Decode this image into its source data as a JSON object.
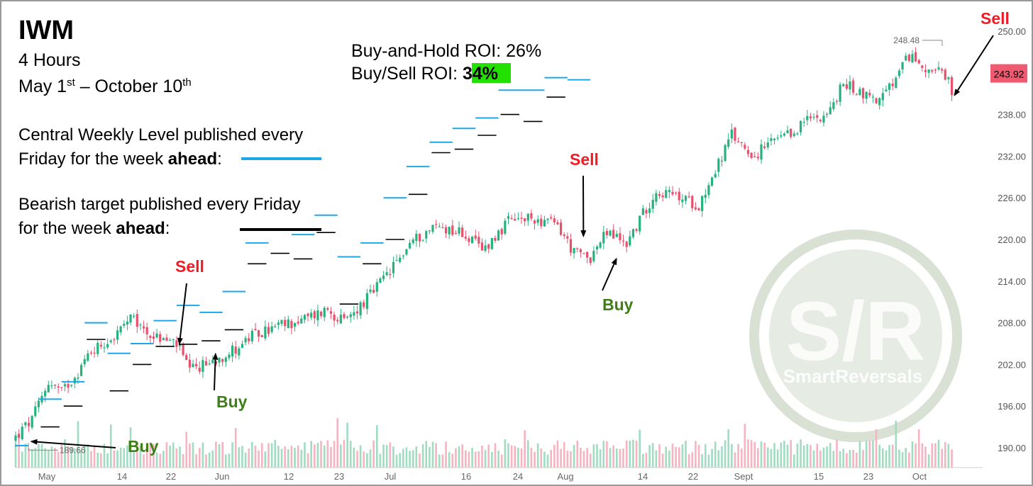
{
  "header": {
    "ticker": "IWM",
    "timeframe": "4 Hours",
    "range_parts": [
      "May 1",
      "st",
      " – October 10",
      "th"
    ]
  },
  "roi": {
    "buy_hold": "Buy-and-Hold ROI: 26%",
    "buy_sell_label": "Buy/Sell ROI: ",
    "buy_sell_value": "34%",
    "highlight_color": "#22e000"
  },
  "legend": {
    "central_line1": "Central Weekly Level published every",
    "central_line2_pre": "Friday for the week ",
    "central_line2_bold": "ahead",
    "central_line2_post": ":",
    "central_color": "#1ea7e8",
    "bearish_line1": "Bearish target published every Friday",
    "bearish_line2_pre": "for the week ",
    "bearish_line2_bold": "ahead",
    "bearish_line2_post": ":",
    "bearish_color": "#000000"
  },
  "watermark": {
    "big": "S/R",
    "small": "SmartReversals"
  },
  "chart_data": {
    "type": "candlestick",
    "ylim": [
      187,
      251
    ],
    "y_ticks": [
      "250.00",
      "238.00",
      "232.00",
      "226.00",
      "220.00",
      "214.00",
      "208.00",
      "202.00",
      "196.00",
      "190.00"
    ],
    "x_ticks": [
      "May",
      "14",
      "22",
      "Jun",
      "12",
      "23",
      "Jul",
      "16",
      "24",
      "Aug",
      "14",
      "22",
      "Sept",
      "15",
      "23",
      "Oct"
    ],
    "last_price": "243.92",
    "high_marker": "248.48",
    "low_marker": "189.66",
    "up_color": "#26b27e",
    "down_color": "#e8506c",
    "close_path": [
      [
        0,
        191.5
      ],
      [
        5,
        194
      ],
      [
        10,
        199.5
      ],
      [
        14,
        198
      ],
      [
        19,
        201
      ],
      [
        23,
        204
      ],
      [
        30,
        206
      ],
      [
        35,
        208.5
      ],
      [
        42,
        206
      ],
      [
        49,
        205
      ],
      [
        53,
        201
      ],
      [
        60,
        202.5
      ],
      [
        66,
        204
      ],
      [
        72,
        206
      ],
      [
        80,
        207.5
      ],
      [
        88,
        208.5
      ],
      [
        95,
        210
      ],
      [
        100,
        208
      ],
      [
        108,
        212
      ],
      [
        115,
        216
      ],
      [
        120,
        219.5
      ],
      [
        128,
        222
      ],
      [
        136,
        221
      ],
      [
        142,
        218.5
      ],
      [
        150,
        222.5
      ],
      [
        158,
        223
      ],
      [
        165,
        222
      ],
      [
        170,
        218
      ],
      [
        175,
        217.5
      ],
      [
        180,
        221
      ],
      [
        186,
        219.5
      ],
      [
        195,
        227
      ],
      [
        202,
        226
      ],
      [
        208,
        225
      ],
      [
        212,
        229
      ],
      [
        218,
        235
      ],
      [
        225,
        232
      ],
      [
        230,
        234
      ],
      [
        236,
        235
      ],
      [
        240,
        237
      ],
      [
        248,
        238.5
      ],
      [
        252,
        242.5
      ],
      [
        258,
        241
      ],
      [
        263,
        240
      ],
      [
        268,
        243
      ],
      [
        272,
        246.5
      ],
      [
        276,
        245
      ],
      [
        281,
        244
      ],
      [
        284,
        242.5
      ],
      [
        285,
        240
      ]
    ],
    "central_levels": [
      [
        0,
        4,
        190.3
      ],
      [
        7,
        14,
        197
      ],
      [
        14,
        21,
        199.5
      ],
      [
        21,
        28,
        208
      ],
      [
        28,
        35,
        203.6
      ],
      [
        35,
        42,
        205
      ],
      [
        42,
        49,
        208.3
      ],
      [
        49,
        56,
        210.5
      ],
      [
        56,
        63,
        209.5
      ],
      [
        63,
        70,
        212.5
      ],
      [
        70,
        77,
        219.5
      ],
      [
        77,
        84,
        221.5
      ],
      [
        84,
        91,
        220.7
      ],
      [
        91,
        98,
        223.5
      ],
      [
        98,
        105,
        217.5
      ],
      [
        105,
        112,
        219.5
      ],
      [
        112,
        119,
        226
      ],
      [
        119,
        126,
        230.5
      ],
      [
        126,
        133,
        234
      ],
      [
        133,
        140,
        236
      ],
      [
        140,
        147,
        237.5
      ],
      [
        147,
        154,
        241.5
      ],
      [
        154,
        161,
        241.5
      ],
      [
        161,
        168,
        243.3
      ],
      [
        168,
        175,
        243
      ]
    ],
    "bearish_levels": [
      [
        7,
        14,
        193
      ],
      [
        14,
        21,
        196
      ],
      [
        21,
        28,
        205.6
      ],
      [
        28,
        35,
        198.2
      ],
      [
        35,
        42,
        202
      ],
      [
        42,
        49,
        204.6
      ],
      [
        49,
        56,
        204.9
      ],
      [
        56,
        63,
        205.4
      ],
      [
        63,
        70,
        207
      ],
      [
        70,
        77,
        216.5
      ],
      [
        77,
        84,
        218
      ],
      [
        84,
        91,
        217.2
      ],
      [
        91,
        98,
        221
      ],
      [
        98,
        105,
        210.7
      ],
      [
        105,
        112,
        216.5
      ],
      [
        112,
        119,
        220
      ],
      [
        119,
        126,
        226.5
      ],
      [
        126,
        133,
        232.5
      ],
      [
        133,
        140,
        233
      ],
      [
        140,
        147,
        235
      ],
      [
        147,
        154,
        238
      ],
      [
        154,
        161,
        237
      ],
      [
        161,
        168,
        240.5
      ]
    ],
    "signals": [
      {
        "label": "Buy",
        "color": "#3f7f17",
        "bar": 4,
        "price": 190.9
      },
      {
        "label": "Sell",
        "color": "#ee1c24",
        "bar": 49,
        "price": 205
      },
      {
        "label": "Buy",
        "color": "#3f7f17",
        "bar": 60,
        "price": 203.5
      },
      {
        "label": "Sell",
        "color": "#ee1c24",
        "bar": 172,
        "price": 220.5
      },
      {
        "label": "Buy",
        "color": "#3f7f17",
        "bar": 182,
        "price": 217.2
      },
      {
        "label": "Sell",
        "color": "#ee1c24",
        "bar": 285,
        "price": 240.8
      }
    ]
  }
}
